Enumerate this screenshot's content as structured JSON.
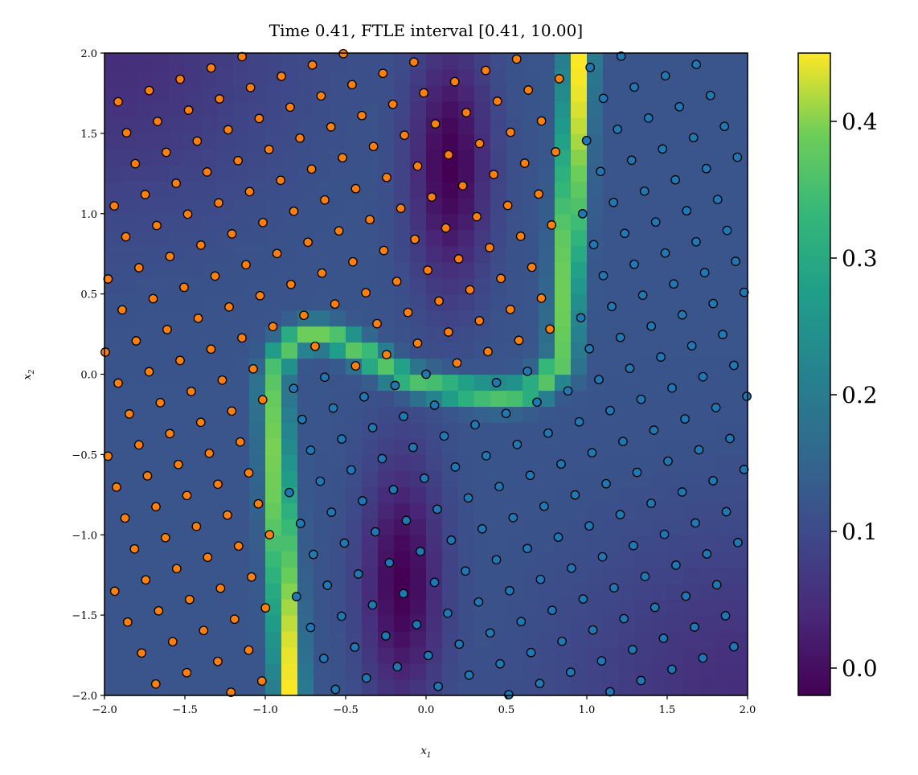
{
  "chart_data": {
    "type": "heatmap",
    "title": "Time 0.41, FTLE interval [0.41, 10.00]",
    "xlabel": "x",
    "xlabel_sub": "1",
    "ylabel": "x",
    "ylabel_sub": "2",
    "xlim": [
      -2.0,
      2.0
    ],
    "ylim": [
      -2.0,
      2.0
    ],
    "x_ticks": [
      "−2.0",
      "−1.5",
      "−1.0",
      "−0.5",
      "0.0",
      "0.5",
      "1.0",
      "1.5",
      "2.0"
    ],
    "x_tick_values": [
      -2.0,
      -1.5,
      -1.0,
      -0.5,
      0.0,
      0.5,
      1.0,
      1.5,
      2.0
    ],
    "y_ticks": [
      "−2.0",
      "−1.5",
      "−1.0",
      "−0.5",
      "0.0",
      "0.5",
      "1.0",
      "1.5",
      "2.0"
    ],
    "y_tick_values": [
      -2.0,
      -1.5,
      -1.0,
      -0.5,
      0.0,
      0.5,
      1.0,
      1.5,
      2.0
    ],
    "colormap": "viridis",
    "colorbar": {
      "range": [
        -0.02,
        0.45
      ],
      "ticks": [
        "0.0",
        "0.1",
        "0.2",
        "0.3",
        "0.4"
      ],
      "tick_values": [
        0.0,
        0.1,
        0.2,
        0.3,
        0.4
      ]
    },
    "grid_cells": 40,
    "field": {
      "description_values": "FTLE ridge along S-shaped curve: vertical at x1≈-0.9 (x2 from -2 to 0), horizontal near x2≈0.25 then dipping to -0.2, rising vertical at x1≈0.9 (x2 from 0 to 2)",
      "ridge_peak": 0.45,
      "background": 0.12,
      "trough_min": -0.02
    },
    "series": [
      {
        "color": "#ff7f0e"
      },
      {
        "color": "#1f77b4"
      }
    ],
    "particle_marker": {
      "edge_color": "#000000"
    }
  }
}
